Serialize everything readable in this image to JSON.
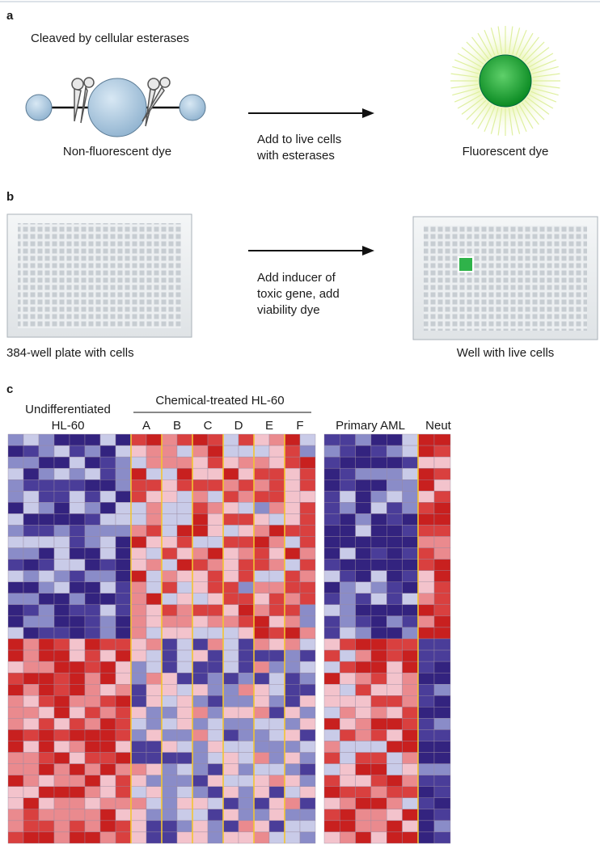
{
  "panel_a": {
    "label": "a",
    "caption": "Cleaved by cellular esterases",
    "left_label": "Non-fluorescent dye",
    "arrow_text": [
      "Add to live cells",
      "with esterases"
    ],
    "right_label": "Fluorescent dye"
  },
  "panel_b": {
    "label": "b",
    "left_label": "384-well plate with cells",
    "arrow_text": [
      "Add inducer of",
      "toxic gene, add",
      "viability dye"
    ],
    "right_label": "Well with live cells"
  },
  "panel_c": {
    "label": "c",
    "group_1": [
      "Undifferentiated",
      "HL-60"
    ],
    "group_2": "Chemical-treated HL-60",
    "treatments": [
      "A",
      "B",
      "C",
      "D",
      "E",
      "F"
    ],
    "group_3": "Primary AML",
    "group_4": "Neut"
  }
}
